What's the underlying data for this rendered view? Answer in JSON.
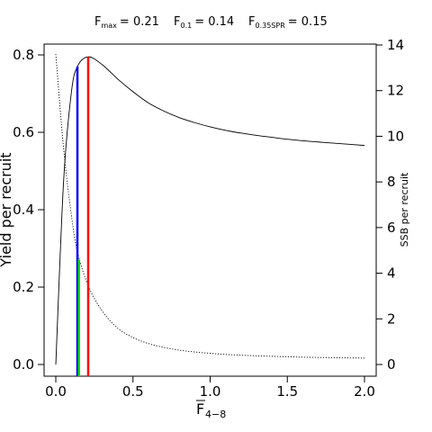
{
  "chart_data": {
    "type": "line",
    "x": [
      0.0,
      0.05,
      0.1,
      0.14,
      0.21,
      0.3,
      0.4,
      0.5,
      0.6,
      0.7,
      0.8,
      0.9,
      1.0,
      1.1,
      1.2,
      1.3,
      1.4,
      1.5,
      1.6,
      1.7,
      1.8,
      1.9,
      2.0
    ],
    "xlabel_main": "F",
    "xlabel_sub": "4−8",
    "xlim": [
      0,
      2
    ],
    "x_ticks": [
      0.0,
      0.5,
      1.0,
      1.5,
      2.0
    ],
    "x_tick_labels": [
      "0.0",
      "0.5",
      "1.0",
      "1.5",
      "2.0"
    ],
    "ylabel": "Yield per recruit",
    "ylim": [
      0,
      0.8
    ],
    "y_ticks": [
      0.0,
      0.2,
      0.4,
      0.6,
      0.8
    ],
    "y_tick_labels": [
      "0.0",
      "0.2",
      "0.4",
      "0.6",
      "0.8"
    ],
    "ylabel_right": "SSB per recruit",
    "ylim_right": [
      0,
      14
    ],
    "y_ticks_right": [
      0,
      2,
      4,
      6,
      8,
      10,
      12,
      14
    ],
    "y_tick_labels_right": [
      "0",
      "2",
      "4",
      "6",
      "8",
      "10",
      "12",
      "14"
    ],
    "series": [
      {
        "key": "yield",
        "axis": "left",
        "style": "solid",
        "color": "#000000",
        "values": [
          0.0,
          0.47,
          0.7,
          0.77,
          0.795,
          0.775,
          0.738,
          0.705,
          0.676,
          0.655,
          0.638,
          0.625,
          0.614,
          0.605,
          0.598,
          0.592,
          0.587,
          0.582,
          0.578,
          0.575,
          0.572,
          0.569,
          0.566
        ]
      },
      {
        "key": "ssb",
        "axis": "right",
        "style": "dotted",
        "color": "#000000",
        "values": [
          13.6,
          9.5,
          6.6,
          4.95,
          3.45,
          2.35,
          1.6,
          1.18,
          0.92,
          0.75,
          0.63,
          0.55,
          0.49,
          0.44,
          0.41,
          0.38,
          0.36,
          0.34,
          0.32,
          0.31,
          0.3,
          0.29,
          0.28
        ]
      }
    ],
    "reference_points": [
      {
        "key": "fmax",
        "label_main": "F",
        "label_sub": "max",
        "label_value": "= 0.21",
        "f": 0.21,
        "yield": 0.795,
        "ssb": 3.45,
        "color": "#ff0000"
      },
      {
        "key": "f01",
        "label_main": "F",
        "label_sub": "0.1",
        "label_value": "= 0.14",
        "f": 0.14,
        "yield": 0.77,
        "ssb": 4.95,
        "color": "#0000ff"
      },
      {
        "key": "f035",
        "label_main": "F",
        "label_sub": "0.35SPR",
        "label_value": "= 0.15",
        "f": 0.15,
        "yield": 0.0,
        "ssb": 4.6,
        "color": "#00dd00"
      }
    ],
    "grid": false
  }
}
